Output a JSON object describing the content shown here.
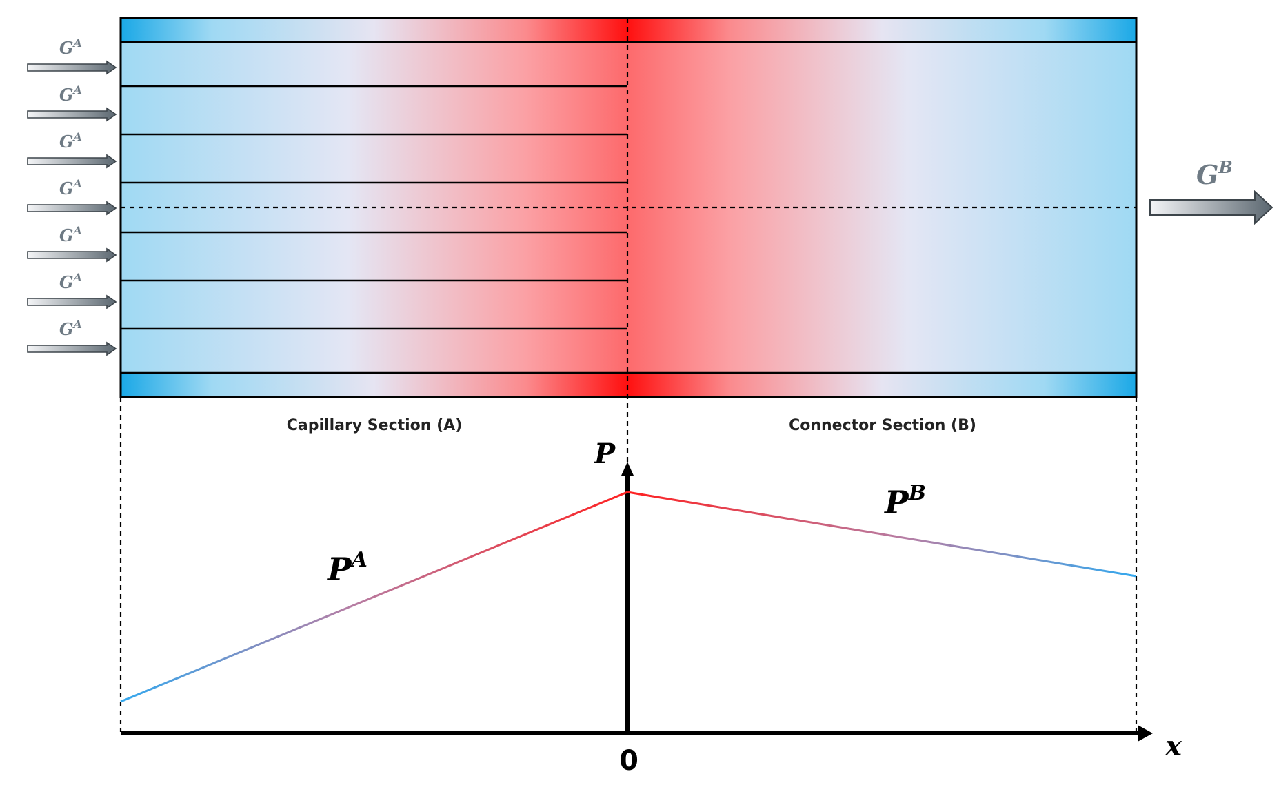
{
  "inlet_flow": {
    "base": "G",
    "sup": "A",
    "count": 7
  },
  "outlet_flow": {
    "base": "G",
    "sup": "B"
  },
  "sections": {
    "capillary": "Capillary Section (A)",
    "connector": "Connector Section (B)"
  },
  "axes": {
    "y_label": "P",
    "x_label": "x",
    "origin_label": "0"
  },
  "pressure_curves": {
    "a_label": {
      "base": "P",
      "sup": "A"
    },
    "b_label": {
      "base": "P",
      "sup": "B"
    }
  },
  "colors": {
    "cool": "#1aa8e6",
    "light_blue": "#9fd9f3",
    "hot": "#ff1f1f",
    "arrow_dark": "#5b6770",
    "label_gray": "#6e7a84"
  }
}
